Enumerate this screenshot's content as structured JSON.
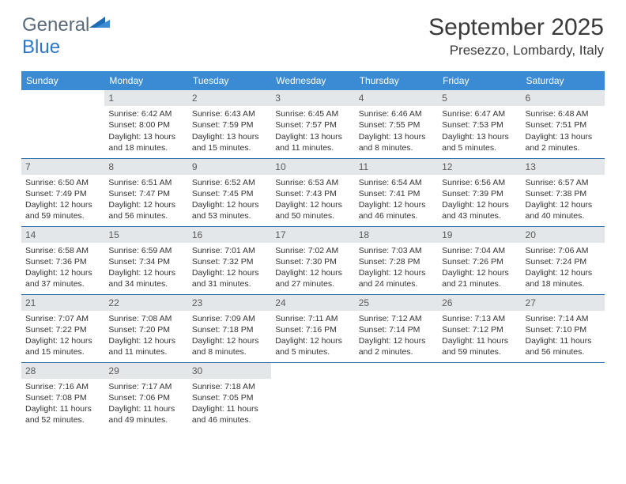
{
  "logo": {
    "text1": "General",
    "text2": "Blue"
  },
  "title": "September 2025",
  "location": "Presezzo, Lombardy, Italy",
  "colors": {
    "header_bg": "#3b8bd4",
    "header_text": "#ffffff",
    "daynum_bg": "#e3e7ea",
    "border": "#2b6aa8",
    "logo_gray": "#5a6a7a",
    "logo_blue": "#2b78c5"
  },
  "daysOfWeek": [
    "Sunday",
    "Monday",
    "Tuesday",
    "Wednesday",
    "Thursday",
    "Friday",
    "Saturday"
  ],
  "weeks": [
    [
      null,
      {
        "n": "1",
        "sr": "6:42 AM",
        "ss": "8:00 PM",
        "dl": "13 hours and 18 minutes."
      },
      {
        "n": "2",
        "sr": "6:43 AM",
        "ss": "7:59 PM",
        "dl": "13 hours and 15 minutes."
      },
      {
        "n": "3",
        "sr": "6:45 AM",
        "ss": "7:57 PM",
        "dl": "13 hours and 11 minutes."
      },
      {
        "n": "4",
        "sr": "6:46 AM",
        "ss": "7:55 PM",
        "dl": "13 hours and 8 minutes."
      },
      {
        "n": "5",
        "sr": "6:47 AM",
        "ss": "7:53 PM",
        "dl": "13 hours and 5 minutes."
      },
      {
        "n": "6",
        "sr": "6:48 AM",
        "ss": "7:51 PM",
        "dl": "13 hours and 2 minutes."
      }
    ],
    [
      {
        "n": "7",
        "sr": "6:50 AM",
        "ss": "7:49 PM",
        "dl": "12 hours and 59 minutes."
      },
      {
        "n": "8",
        "sr": "6:51 AM",
        "ss": "7:47 PM",
        "dl": "12 hours and 56 minutes."
      },
      {
        "n": "9",
        "sr": "6:52 AM",
        "ss": "7:45 PM",
        "dl": "12 hours and 53 minutes."
      },
      {
        "n": "10",
        "sr": "6:53 AM",
        "ss": "7:43 PM",
        "dl": "12 hours and 50 minutes."
      },
      {
        "n": "11",
        "sr": "6:54 AM",
        "ss": "7:41 PM",
        "dl": "12 hours and 46 minutes."
      },
      {
        "n": "12",
        "sr": "6:56 AM",
        "ss": "7:39 PM",
        "dl": "12 hours and 43 minutes."
      },
      {
        "n": "13",
        "sr": "6:57 AM",
        "ss": "7:38 PM",
        "dl": "12 hours and 40 minutes."
      }
    ],
    [
      {
        "n": "14",
        "sr": "6:58 AM",
        "ss": "7:36 PM",
        "dl": "12 hours and 37 minutes."
      },
      {
        "n": "15",
        "sr": "6:59 AM",
        "ss": "7:34 PM",
        "dl": "12 hours and 34 minutes."
      },
      {
        "n": "16",
        "sr": "7:01 AM",
        "ss": "7:32 PM",
        "dl": "12 hours and 31 minutes."
      },
      {
        "n": "17",
        "sr": "7:02 AM",
        "ss": "7:30 PM",
        "dl": "12 hours and 27 minutes."
      },
      {
        "n": "18",
        "sr": "7:03 AM",
        "ss": "7:28 PM",
        "dl": "12 hours and 24 minutes."
      },
      {
        "n": "19",
        "sr": "7:04 AM",
        "ss": "7:26 PM",
        "dl": "12 hours and 21 minutes."
      },
      {
        "n": "20",
        "sr": "7:06 AM",
        "ss": "7:24 PM",
        "dl": "12 hours and 18 minutes."
      }
    ],
    [
      {
        "n": "21",
        "sr": "7:07 AM",
        "ss": "7:22 PM",
        "dl": "12 hours and 15 minutes."
      },
      {
        "n": "22",
        "sr": "7:08 AM",
        "ss": "7:20 PM",
        "dl": "12 hours and 11 minutes."
      },
      {
        "n": "23",
        "sr": "7:09 AM",
        "ss": "7:18 PM",
        "dl": "12 hours and 8 minutes."
      },
      {
        "n": "24",
        "sr": "7:11 AM",
        "ss": "7:16 PM",
        "dl": "12 hours and 5 minutes."
      },
      {
        "n": "25",
        "sr": "7:12 AM",
        "ss": "7:14 PM",
        "dl": "12 hours and 2 minutes."
      },
      {
        "n": "26",
        "sr": "7:13 AM",
        "ss": "7:12 PM",
        "dl": "11 hours and 59 minutes."
      },
      {
        "n": "27",
        "sr": "7:14 AM",
        "ss": "7:10 PM",
        "dl": "11 hours and 56 minutes."
      }
    ],
    [
      {
        "n": "28",
        "sr": "7:16 AM",
        "ss": "7:08 PM",
        "dl": "11 hours and 52 minutes."
      },
      {
        "n": "29",
        "sr": "7:17 AM",
        "ss": "7:06 PM",
        "dl": "11 hours and 49 minutes."
      },
      {
        "n": "30",
        "sr": "7:18 AM",
        "ss": "7:05 PM",
        "dl": "11 hours and 46 minutes."
      },
      null,
      null,
      null,
      null
    ]
  ],
  "labels": {
    "sunrise": "Sunrise:",
    "sunset": "Sunset:",
    "daylight": "Daylight:"
  }
}
